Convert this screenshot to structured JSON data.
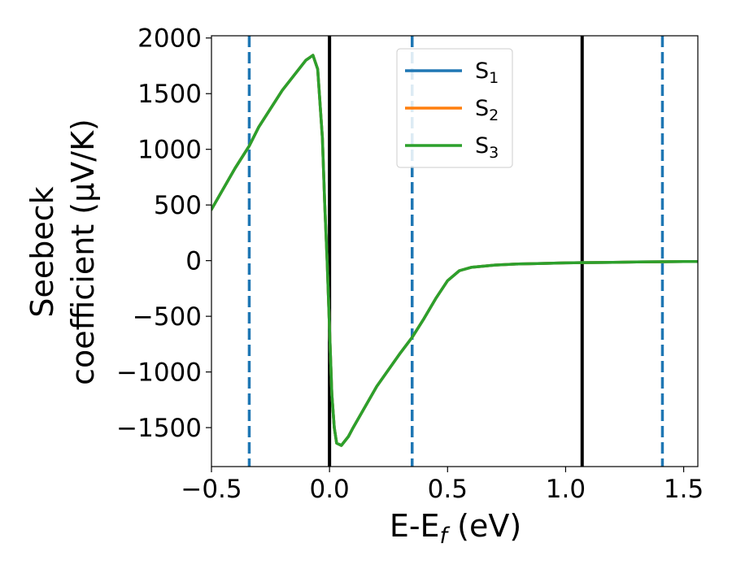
{
  "chart_data": {
    "type": "line",
    "xlabel": {
      "base": "E-E",
      "sub": "f",
      "unit": " (eV)"
    },
    "ylabel": {
      "line1": "Seebeck",
      "line2": "coefficient  (μV/K)"
    },
    "xlim": [
      -0.5,
      1.56
    ],
    "ylim": [
      -1850,
      2020
    ],
    "xticks": [
      -0.5,
      0.0,
      0.5,
      1.0,
      1.5
    ],
    "xtick_labels": [
      "−0.5",
      "0.0",
      "0.5",
      "1.0",
      "1.5"
    ],
    "yticks": [
      2000,
      1500,
      1000,
      500,
      0,
      -500,
      -1000,
      -1500
    ],
    "ytick_labels": [
      "2000",
      "1500",
      "1000",
      "500",
      "0",
      "−500",
      "−1000",
      "−1500"
    ],
    "vlines": [
      {
        "x": -0.34,
        "style": "dashed",
        "color": "#1f77b4"
      },
      {
        "x": 0.0,
        "style": "solid",
        "color": "#000000"
      },
      {
        "x": 0.35,
        "style": "dashed",
        "color": "#1f77b4"
      },
      {
        "x": 1.07,
        "style": "solid",
        "color": "#000000"
      },
      {
        "x": 1.41,
        "style": "dashed",
        "color": "#1f77b4"
      }
    ],
    "legend_position": "top-center",
    "series": [
      {
        "name": "S",
        "sub": "1",
        "color": "#1f77b4",
        "x": [
          -0.5,
          -0.4,
          -0.34,
          -0.3,
          -0.2,
          -0.1,
          -0.07,
          -0.05,
          -0.03,
          -0.02,
          -0.01,
          0.0,
          0.01,
          0.02,
          0.03,
          0.05,
          0.08,
          0.1,
          0.2,
          0.3,
          0.35,
          0.4,
          0.45,
          0.5,
          0.55,
          0.6,
          0.7,
          0.8,
          0.9,
          1.0,
          1.07,
          1.2,
          1.3,
          1.41,
          1.5,
          1.56
        ],
        "y": [
          460,
          830,
          1030,
          1200,
          1530,
          1800,
          1845,
          1720,
          1100,
          500,
          0,
          -600,
          -1200,
          -1500,
          -1640,
          -1660,
          -1580,
          -1500,
          -1130,
          -830,
          -690,
          -520,
          -340,
          -180,
          -90,
          -60,
          -40,
          -30,
          -25,
          -20,
          -18,
          -15,
          -12,
          -10,
          -8,
          -8
        ]
      },
      {
        "name": "S",
        "sub": "2",
        "color": "#ff7f0e",
        "x": [
          -0.5,
          -0.4,
          -0.34,
          -0.3,
          -0.2,
          -0.1,
          -0.07,
          -0.05,
          -0.03,
          -0.02,
          -0.01,
          0.0,
          0.01,
          0.02,
          0.03,
          0.05,
          0.08,
          0.1,
          0.2,
          0.3,
          0.35,
          0.4,
          0.45,
          0.5,
          0.55,
          0.6,
          0.7,
          0.8,
          0.9,
          1.0,
          1.07,
          1.2,
          1.3,
          1.41,
          1.5,
          1.56
        ],
        "y": [
          460,
          830,
          1030,
          1200,
          1530,
          1800,
          1845,
          1720,
          1100,
          500,
          0,
          -600,
          -1200,
          -1500,
          -1640,
          -1660,
          -1580,
          -1500,
          -1130,
          -830,
          -690,
          -520,
          -340,
          -180,
          -90,
          -60,
          -40,
          -30,
          -25,
          -20,
          -18,
          -15,
          -12,
          -10,
          -8,
          -8
        ]
      },
      {
        "name": "S",
        "sub": "3",
        "color": "#2ca02c",
        "x": [
          -0.5,
          -0.4,
          -0.34,
          -0.3,
          -0.2,
          -0.1,
          -0.07,
          -0.05,
          -0.03,
          -0.02,
          -0.01,
          0.0,
          0.01,
          0.02,
          0.03,
          0.05,
          0.08,
          0.1,
          0.2,
          0.3,
          0.35,
          0.4,
          0.45,
          0.5,
          0.55,
          0.6,
          0.7,
          0.8,
          0.9,
          1.0,
          1.07,
          1.2,
          1.3,
          1.41,
          1.5,
          1.56
        ],
        "y": [
          460,
          830,
          1030,
          1200,
          1530,
          1800,
          1845,
          1720,
          1100,
          500,
          0,
          -600,
          -1200,
          -1500,
          -1640,
          -1660,
          -1580,
          -1500,
          -1130,
          -830,
          -690,
          -520,
          -340,
          -180,
          -90,
          -60,
          -40,
          -30,
          -25,
          -20,
          -18,
          -15,
          -12,
          -10,
          -8,
          -8
        ]
      }
    ]
  }
}
